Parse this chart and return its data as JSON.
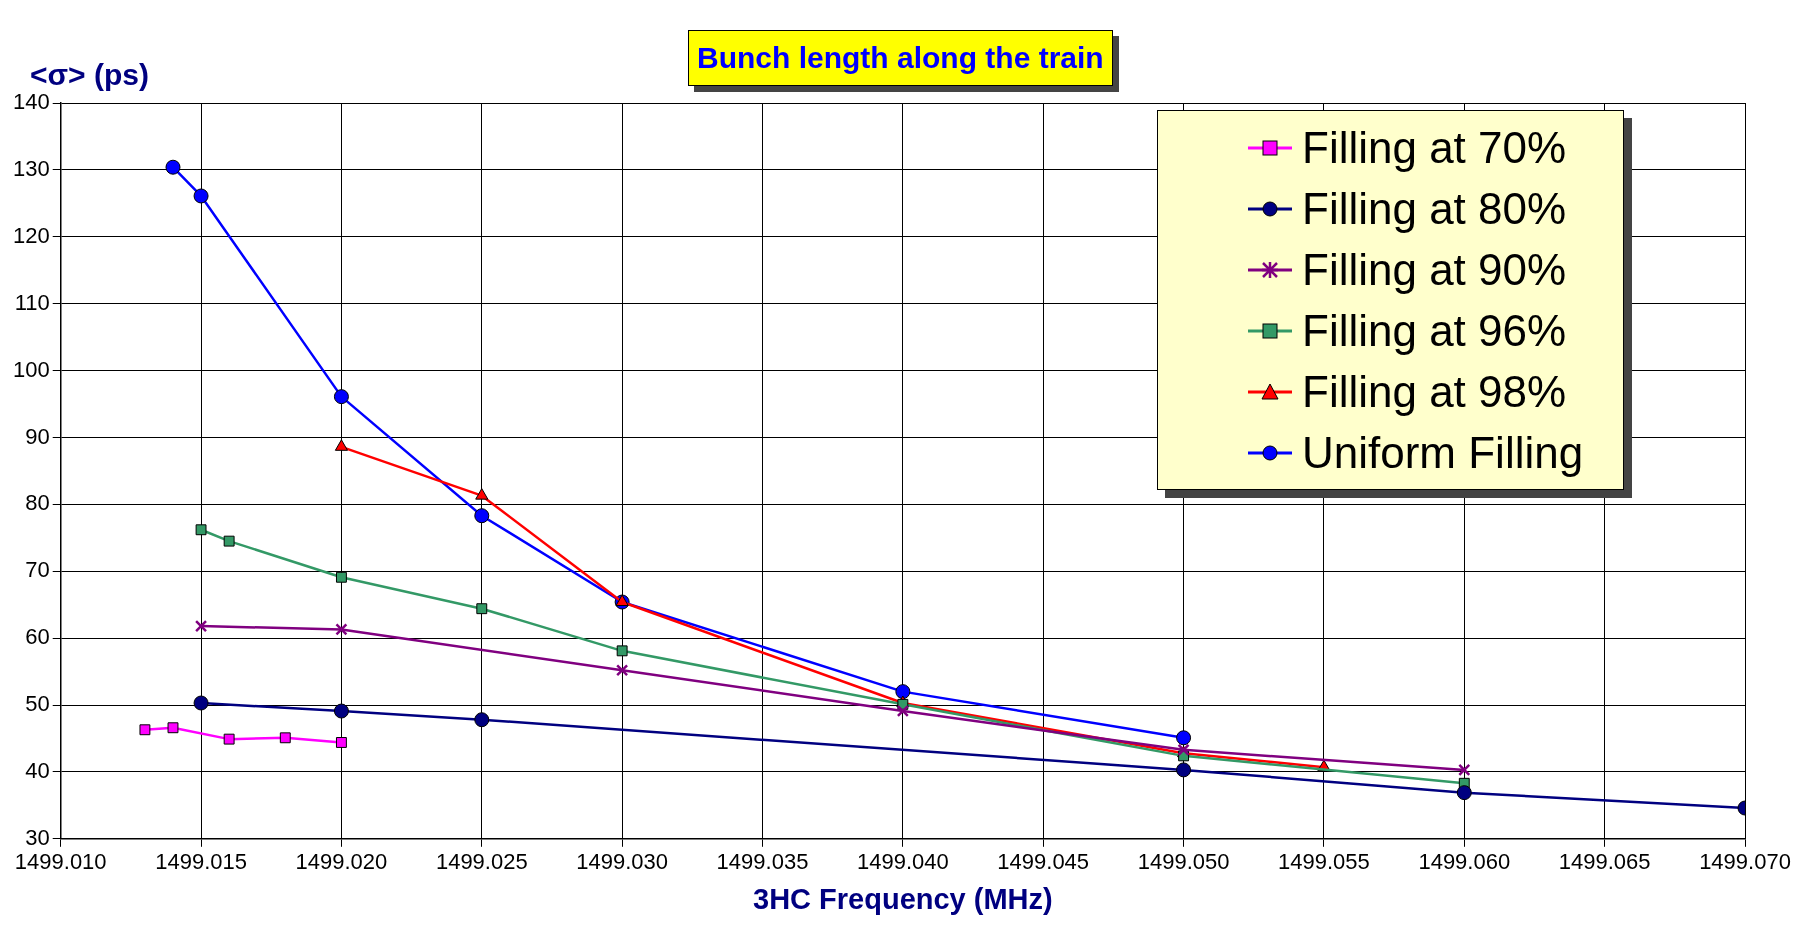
{
  "chart_data": {
    "type": "line",
    "title": "Bunch length along the train",
    "xlabel": "3HC Frequency (MHz)",
    "ylabel": "<σ> (ps)",
    "xlim": [
      1499.01,
      1499.07
    ],
    "xticks": [
      {
        "value": 1499.01,
        "label": "1499.010"
      },
      {
        "value": 1499.015,
        "label": "1499.015"
      },
      {
        "value": 1499.02,
        "label": "1499.020"
      },
      {
        "value": 1499.025,
        "label": "1499.025"
      },
      {
        "value": 1499.03,
        "label": "1499.030"
      },
      {
        "value": 1499.035,
        "label": "1499.035"
      },
      {
        "value": 1499.04,
        "label": "1499.040"
      },
      {
        "value": 1499.045,
        "label": "1499.045"
      },
      {
        "value": 1499.05,
        "label": "1499.050"
      },
      {
        "value": 1499.055,
        "label": "1499.055"
      },
      {
        "value": 1499.06,
        "label": "1499.060"
      },
      {
        "value": 1499.065,
        "label": "1499.065"
      },
      {
        "value": 1499.07,
        "label": "1499.070"
      }
    ],
    "ylim": [
      30,
      140
    ],
    "yticks": [
      30,
      40,
      50,
      60,
      70,
      80,
      90,
      100,
      110,
      120,
      130,
      140
    ],
    "grid": true,
    "legend": "top right",
    "line_style": "solid",
    "series": [
      {
        "name": "Filling at 70%",
        "color": "#ff00ff",
        "marker": "square",
        "x": [
          1499.013,
          1499.014,
          1499.016,
          1499.018,
          1499.02
        ],
        "values": [
          46.3,
          46.6,
          44.9,
          45.1,
          44.4
        ]
      },
      {
        "name": "Filling at 80%",
        "color": "#000080",
        "marker": "circle",
        "x": [
          1499.015,
          1499.02,
          1499.025,
          1499.05,
          1499.06,
          1499.07
        ],
        "values": [
          50.3,
          49.1,
          47.8,
          40.3,
          36.9,
          34.6
        ]
      },
      {
        "name": "Filling at 90%",
        "color": "#800080",
        "marker": "cross",
        "x": [
          1499.015,
          1499.02,
          1499.03,
          1499.04,
          1499.05,
          1499.06
        ],
        "values": [
          61.8,
          61.3,
          55.2,
          49.1,
          43.3,
          40.3
        ]
      },
      {
        "name": "Filling at 96%",
        "color": "#339966",
        "marker": "square",
        "x": [
          1499.015,
          1499.016,
          1499.02,
          1499.025,
          1499.03,
          1499.04,
          1499.05,
          1499.06
        ],
        "values": [
          76.2,
          74.5,
          69.1,
          64.4,
          58.1,
          50.1,
          42.4,
          38.3
        ]
      },
      {
        "name": "Filling at 98%",
        "color": "#ff0000",
        "marker": "triangle",
        "x": [
          1499.02,
          1499.025,
          1499.03,
          1499.04,
          1499.05,
          1499.055
        ],
        "values": [
          88.6,
          81.3,
          65.4,
          50.3,
          42.8,
          40.7
        ]
      },
      {
        "name": "Uniform Filling",
        "color": "#0000ff",
        "marker": "circle",
        "x": [
          1499.014,
          1499.015,
          1499.02,
          1499.025,
          1499.03,
          1499.04,
          1499.05
        ],
        "values": [
          130.4,
          126.1,
          96.1,
          78.3,
          65.4,
          52.0,
          45.1
        ]
      }
    ]
  }
}
